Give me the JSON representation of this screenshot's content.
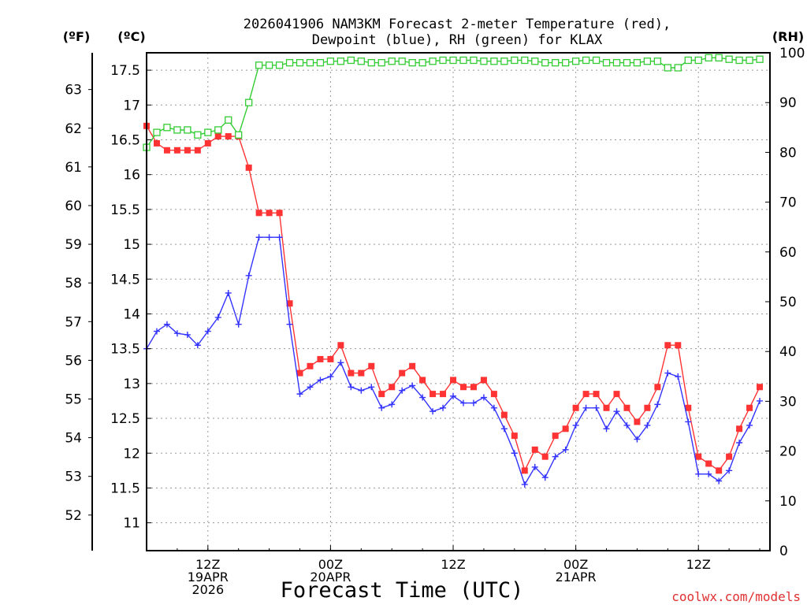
{
  "chart_data": {
    "type": "line",
    "title_line1": "2026041906 NAM3KM Forecast 2-meter Temperature (red),",
    "title_line2": "Dewpoint (blue), RH (green) for KLAX",
    "xlabel": "Forecast Time (UTC)",
    "unit_f": "(ºF)",
    "unit_c": "(ºC)",
    "unit_rh": "(RH)",
    "credit": "coolwx.com/models",
    "x_range_hours": [
      0,
      61
    ],
    "celsius_range": [
      10.6,
      17.75
    ],
    "fahrenheit_ticks": [
      52,
      53,
      54,
      55,
      56,
      57,
      58,
      59,
      60,
      61,
      62,
      63
    ],
    "celsius_ticks": [
      11,
      11.5,
      12,
      12.5,
      13,
      13.5,
      14,
      14.5,
      15,
      15.5,
      16,
      16.5,
      17,
      17.5
    ],
    "rh_range": [
      0,
      100
    ],
    "rh_ticks": [
      0,
      10,
      20,
      30,
      40,
      50,
      60,
      70,
      80,
      90,
      100
    ],
    "x_ticks": [
      {
        "hour": 6,
        "line1": "12Z",
        "line2": "19APR",
        "line3": "2026"
      },
      {
        "hour": 18,
        "line1": "00Z",
        "line2": "20APR",
        "line3": ""
      },
      {
        "hour": 30,
        "line1": "12Z",
        "line2": "",
        "line3": ""
      },
      {
        "hour": 42,
        "line1": "00Z",
        "line2": "21APR",
        "line3": ""
      },
      {
        "hour": 54,
        "line1": "12Z",
        "line2": "",
        "line3": ""
      }
    ],
    "series": [
      {
        "name": "Temperature",
        "unit": "C",
        "color": "#ff3333",
        "marker": "filled-square",
        "values": [
          16.7,
          16.45,
          16.35,
          16.35,
          16.35,
          16.35,
          16.45,
          16.55,
          16.55,
          16.55,
          16.1,
          15.45,
          15.45,
          15.45,
          14.15,
          13.15,
          13.25,
          13.35,
          13.35,
          13.55,
          13.15,
          13.15,
          13.25,
          12.85,
          12.95,
          13.15,
          13.25,
          13.05,
          12.85,
          12.85,
          13.05,
          12.95,
          12.95,
          13.05,
          12.85,
          12.55,
          12.25,
          11.75,
          12.05,
          11.95,
          12.25,
          12.35,
          12.65,
          12.85,
          12.85,
          12.65,
          12.85,
          12.65,
          12.45,
          12.65,
          12.95,
          13.55,
          13.55,
          12.65,
          11.95,
          11.85,
          11.75,
          11.95,
          12.35,
          12.65,
          12.95
        ]
      },
      {
        "name": "Dewpoint",
        "unit": "C",
        "color": "#3333ff",
        "marker": "plus",
        "values": [
          13.5,
          13.75,
          13.85,
          13.72,
          13.7,
          13.55,
          13.75,
          13.95,
          14.3,
          13.85,
          14.55,
          15.1,
          15.1,
          15.1,
          13.85,
          12.85,
          12.95,
          13.05,
          13.1,
          13.3,
          12.95,
          12.9,
          12.95,
          12.65,
          12.7,
          12.9,
          12.97,
          12.8,
          12.6,
          12.65,
          12.82,
          12.72,
          12.72,
          12.8,
          12.65,
          12.35,
          12.0,
          11.55,
          11.8,
          11.65,
          11.95,
          12.05,
          12.4,
          12.65,
          12.65,
          12.35,
          12.6,
          12.4,
          12.2,
          12.4,
          12.7,
          13.15,
          13.1,
          12.45,
          11.7,
          11.7,
          11.6,
          11.75,
          12.15,
          12.4,
          12.75
        ]
      },
      {
        "name": "RH",
        "unit": "%",
        "color": "#33cc33",
        "marker": "open-square",
        "values": [
          81,
          84,
          85,
          84.5,
          84.5,
          83.5,
          84,
          84.5,
          86.5,
          83.5,
          90,
          97.5,
          97.5,
          97.5,
          98,
          98,
          98,
          98,
          98.3,
          98.3,
          98.5,
          98.3,
          98,
          98,
          98.3,
          98.3,
          98,
          98,
          98.3,
          98.5,
          98.5,
          98.5,
          98.5,
          98.3,
          98.3,
          98.3,
          98.5,
          98.5,
          98.3,
          98,
          98,
          98,
          98.3,
          98.5,
          98.5,
          98,
          98,
          98,
          98,
          98.3,
          98.3,
          97,
          97,
          98.5,
          98.5,
          99,
          99,
          98.7,
          98.5,
          98.5,
          98.7
        ]
      }
    ]
  }
}
